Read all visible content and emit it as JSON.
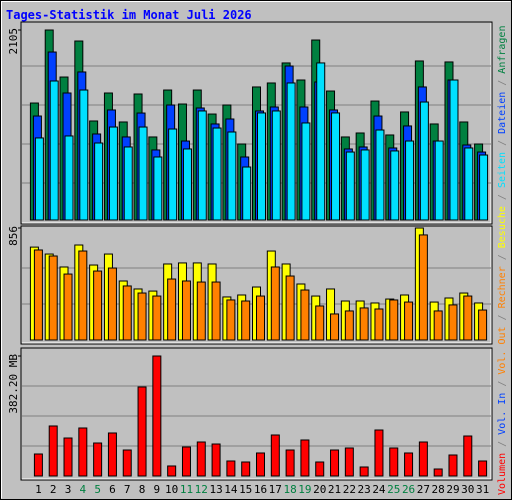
{
  "chart_data": [
    {
      "type": "bar",
      "title": "Tages-Statistik im Monat Juli 2026",
      "ylim": [
        0,
        2105
      ],
      "yticks": [
        2105
      ],
      "series": [
        {
          "name": "Anfragen",
          "color": "#008040",
          "values": [
            1296,
            2105,
            1584,
            1983,
            1097,
            1407,
            1086,
            1396,
            920,
            1440,
            1285,
            1440,
            1174,
            1274,
            842,
            1474,
            1518,
            1740,
            1551,
            1994,
            1429,
            920,
            964,
            1318,
            942,
            1197,
            1762,
            1064,
            1751,
            1086,
            842
          ]
        },
        {
          "name": "Dateien",
          "color": "#0040ff",
          "values": [
            1152,
            1861,
            1407,
            1640,
            953,
            1219,
            920,
            1185,
            776,
            1274,
            875,
            1241,
            1064,
            1119,
            698,
            1208,
            1252,
            1706,
            1252,
            1529,
            1219,
            787,
            809,
            1152,
            798,
            1042,
            1474,
            875,
            1551,
            831,
            753
          ]
        },
        {
          "name": "Seiten",
          "color": "#00e0ff",
          "values": [
            909,
            1540,
            931,
            1440,
            853,
            1030,
            809,
            1030,
            698,
            1008,
            787,
            1208,
            1019,
            975,
            587,
            1186,
            1208,
            1518,
            1075,
            1740,
            1186,
            753,
            776,
            997,
            765,
            875,
            1307,
            875,
            1551,
            798,
            720
          ]
        }
      ]
    },
    {
      "type": "bar",
      "ylim": [
        0,
        856
      ],
      "yticks": [
        856
      ],
      "series": [
        {
          "name": "Besuche",
          "color": "#ffff00",
          "values": [
            710,
            657,
            558,
            726,
            573,
            657,
            451,
            390,
            374,
            581,
            589,
            589,
            581,
            329,
            344,
            405,
            680,
            581,
            428,
            336,
            390,
            298,
            298,
            283,
            313,
            344,
            856,
            290,
            321,
            359,
            283
          ]
        },
        {
          "name": "Rechner",
          "color": "#ff8000",
          "values": [
            688,
            642,
            504,
            680,
            527,
            550,
            413,
            359,
            336,
            466,
            451,
            443,
            443,
            306,
            298,
            336,
            558,
            489,
            382,
            260,
            199,
            222,
            245,
            237,
            306,
            290,
            803,
            222,
            268,
            336,
            229
          ]
        }
      ]
    },
    {
      "type": "bar",
      "ylim": [
        0,
        382.2
      ],
      "yticks": [
        {
          "value": 382.2,
          "label": "382.20 MB"
        }
      ],
      "categories": [
        "1",
        "2",
        "3",
        "4",
        "5",
        "6",
        "7",
        "8",
        "9",
        "10",
        "11",
        "12",
        "13",
        "14",
        "15",
        "16",
        "17",
        "18",
        "19",
        "20",
        "21",
        "22",
        "23",
        "24",
        "25",
        "26",
        "27",
        "28",
        "29",
        "30",
        "31"
      ],
      "category_colors": [
        "#000000",
        "#000000",
        "#000000",
        "#008040",
        "#008040",
        "#000000",
        "#000000",
        "#000000",
        "#000000",
        "#000000",
        "#008040",
        "#008040",
        "#000000",
        "#000000",
        "#000000",
        "#000000",
        "#000000",
        "#008040",
        "#008040",
        "#000000",
        "#000000",
        "#000000",
        "#000000",
        "#000000",
        "#008040",
        "#008040",
        "#000000",
        "#000000",
        "#000000",
        "#000000",
        "#000000"
      ],
      "series": [
        {
          "name": "Volumen",
          "color": "#ff0000",
          "values": [
            70.1,
            159.3,
            121.0,
            152.9,
            105.1,
            137.0,
            82.8,
            283.5,
            382.2,
            31.9,
            92.4,
            108.3,
            101.9,
            47.8,
            44.6,
            73.3,
            130.6,
            82.8,
            114.7,
            44.6,
            82.8,
            89.2,
            28.7,
            146.5,
            89.2,
            73.3,
            108.3,
            22.3,
            66.9,
            127.4,
            47.8
          ]
        }
      ],
      "legend_extra": [
        {
          "name": "Vol. In",
          "color": "#0040ff"
        },
        {
          "name": "Vol. Out",
          "color": "#ff8000"
        }
      ]
    }
  ],
  "legend_separator": "/"
}
